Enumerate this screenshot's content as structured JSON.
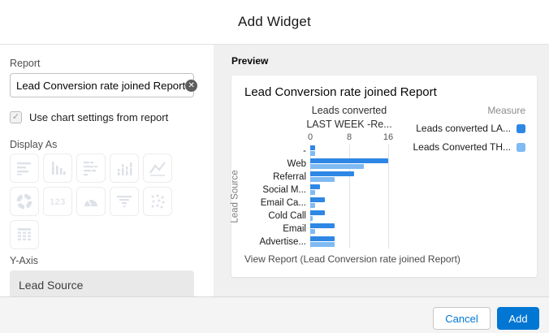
{
  "dialog": {
    "title": "Add Widget"
  },
  "left_panel": {
    "report_label": "Report",
    "report_value": "Lead Conversion rate joined Report",
    "clear_icon": "clear-icon",
    "use_chart_settings_label": "Use chart settings from report",
    "use_chart_settings_checked": true,
    "display_as_label": "Display As",
    "display_as_options": [
      "horizontal-bar-chart",
      "vertical-bar-chart",
      "stacked-horizontal-bar-chart",
      "stacked-vertical-bar-chart",
      "line-chart",
      "donut-chart",
      "metric",
      "gauge",
      "funnel",
      "scatter-plot",
      "table"
    ],
    "y_axis_label": "Y-Axis",
    "y_axis_value": "Lead Source"
  },
  "preview": {
    "label": "Preview",
    "card_title": "Lead Conversion rate joined Report",
    "view_report_text": "View Report (Lead Conversion rate joined Report)"
  },
  "chart_data": {
    "type": "bar",
    "orientation": "horizontal",
    "title_line1": "Leads converted",
    "title_line2": "LAST WEEK -Re...",
    "ylabel": "Lead Source",
    "legend_title": "Measure",
    "legend_position": "right",
    "grid": true,
    "categories": [
      "-",
      "Web",
      "Referral",
      "Social M...",
      "Email Ca...",
      "Cold Call",
      "Email",
      "Advertise..."
    ],
    "series": [
      {
        "name": "Leads converted LA...",
        "color": "#2e87e5",
        "values": [
          1,
          16,
          9,
          2,
          3,
          3,
          5,
          5
        ]
      },
      {
        "name": "Leads Converted TH...",
        "color": "#7fbaf3",
        "values": [
          1,
          11,
          5,
          1,
          1,
          0.5,
          1,
          5
        ]
      }
    ],
    "x_ticks": [
      0,
      8,
      16
    ],
    "xlim": [
      0,
      16.2
    ]
  },
  "footer": {
    "cancel_label": "Cancel",
    "add_label": "Add"
  },
  "colors": {
    "accent_blue": "#0176d3",
    "preview_background": "#f0f0f0",
    "page_header_strip": "#1a3c63"
  }
}
